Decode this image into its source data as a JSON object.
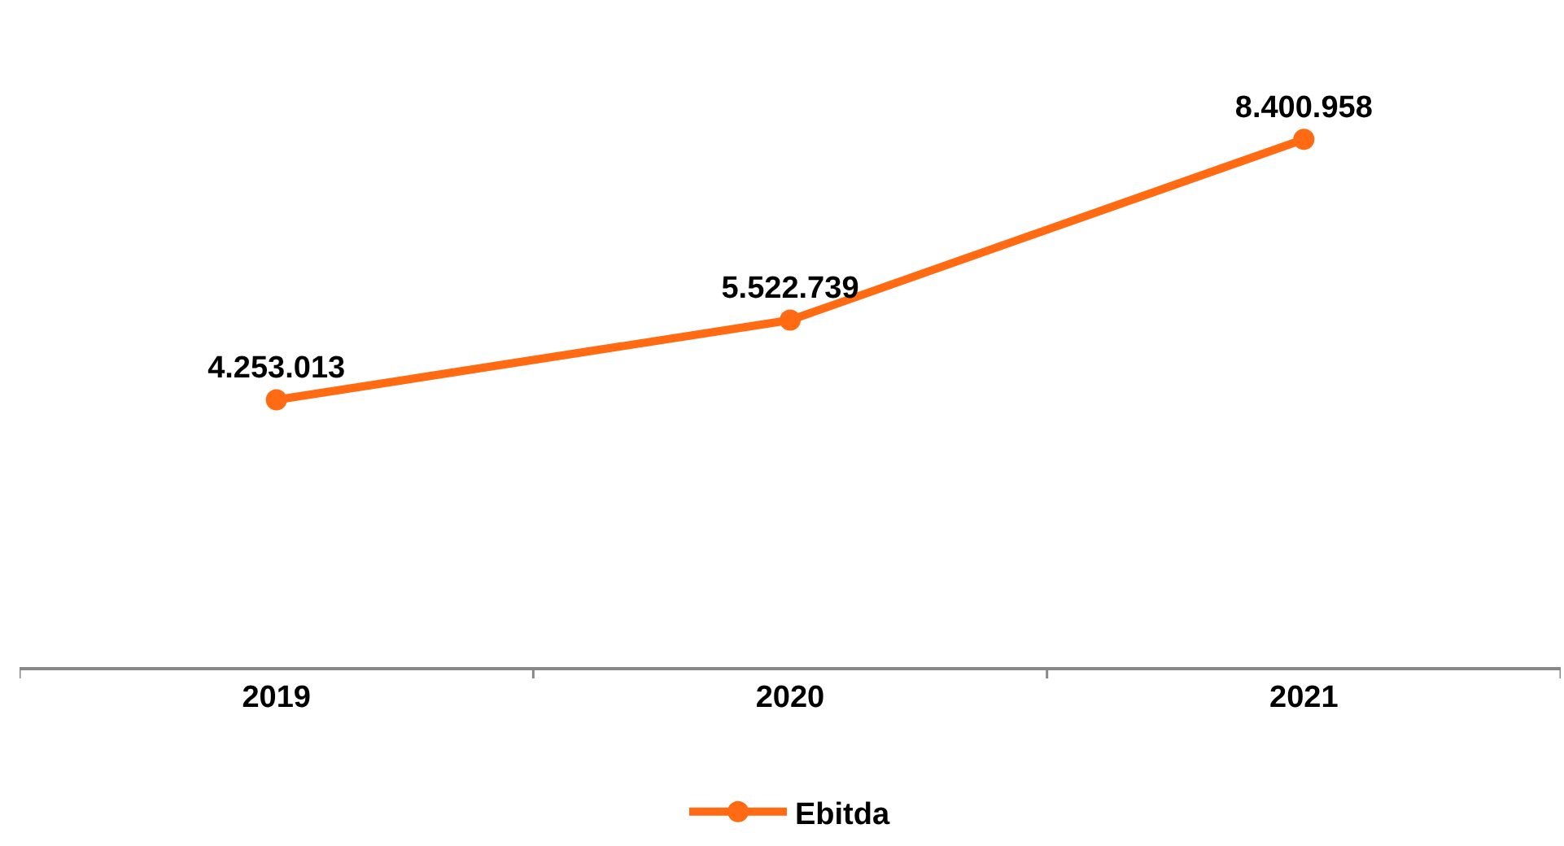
{
  "chart_data": {
    "type": "line",
    "categories": [
      "2019",
      "2020",
      "2021"
    ],
    "series": [
      {
        "name": "Ebitda",
        "color": "#ff6a13",
        "values": [
          4253013,
          5522739,
          8400958
        ],
        "value_labels": [
          "4.253.013",
          "5.522.739",
          "8.400.958"
        ]
      }
    ],
    "tick_labels": "x",
    "legend": "bottom",
    "marker": "circle",
    "line_style": "solid"
  }
}
